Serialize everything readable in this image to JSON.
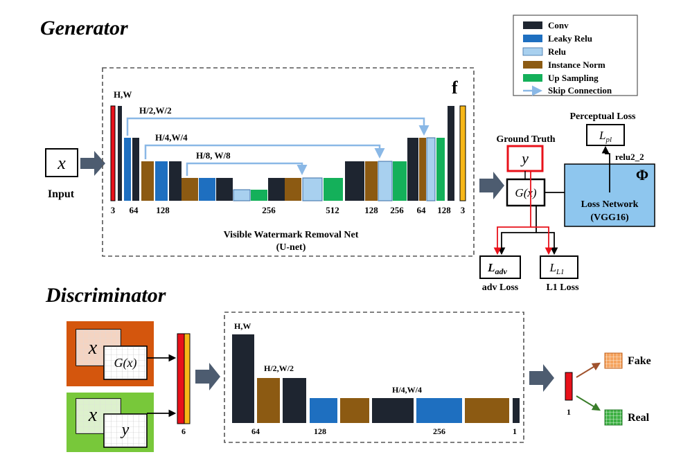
{
  "generator": {
    "title": "Generator",
    "input_symbol": "x",
    "input_label": "Input",
    "net_symbol": "f",
    "resolution_labels": [
      "H,W",
      "H/2,W/2",
      "H/4,W/4",
      "H/8, W/8"
    ],
    "channel_labels": [
      "3",
      "64",
      "128",
      "256",
      "512",
      "128",
      "256",
      "64",
      "128",
      "3"
    ],
    "net_caption_line1": "Visible Watermark Removal Net",
    "net_caption_line2": "(U-net)"
  },
  "legend": {
    "items": [
      {
        "label": "Conv",
        "color": "#1e2530"
      },
      {
        "label": "Leaky Relu",
        "color": "#1e6fc0"
      },
      {
        "label": "Relu",
        "color": "#a8d0ef"
      },
      {
        "label": "Instance Norm",
        "color": "#8c5a12"
      },
      {
        "label": "Up Sampling",
        "color": "#14b05a"
      },
      {
        "label": "Skip Connection",
        "color": "#8ab8e6"
      }
    ]
  },
  "loss": {
    "ground_truth_label": "Ground Truth",
    "y_symbol": "y",
    "gx_symbol": "G(x)",
    "perceptual_label": "Perceptual Loss",
    "lpl_symbol": "L",
    "lpl_sub": "pl",
    "relu_label": "relu2_2",
    "phi_symbol": "Φ",
    "loss_network_line1": "Loss Network",
    "loss_network_line2": "(VGG16)",
    "ladv_symbol": "L",
    "ladv_sub": "adv",
    "ladv_caption": "adv Loss",
    "ll1_symbol": "L",
    "ll1_sub": "L1",
    "ll1_caption": "L1 Loss"
  },
  "discriminator": {
    "title": "Discriminator",
    "x_symbol": "x",
    "gx_symbol": "G(x)",
    "y_symbol": "y",
    "input_channels": "6",
    "resolution_labels": [
      "H,W",
      "H/2,W/2",
      "H/4,W/4"
    ],
    "channel_labels": [
      "64",
      "128",
      "256",
      "1"
    ],
    "output_channels": "1",
    "fake_label": "Fake",
    "real_label": "Real"
  },
  "colors": {
    "conv": "#1e2530",
    "leaky_relu": "#1e6fc0",
    "relu": "#a8d0ef",
    "instance_norm": "#8c5a12",
    "up_sampling": "#14b05a",
    "skip": "#8ab8e6",
    "arrow": "#4d5c70",
    "red": "#e8111a",
    "yellow": "#f7b718",
    "loss_net": "#8ec6ee",
    "fake_box": "#d4560d",
    "real_box": "#78c83a"
  }
}
